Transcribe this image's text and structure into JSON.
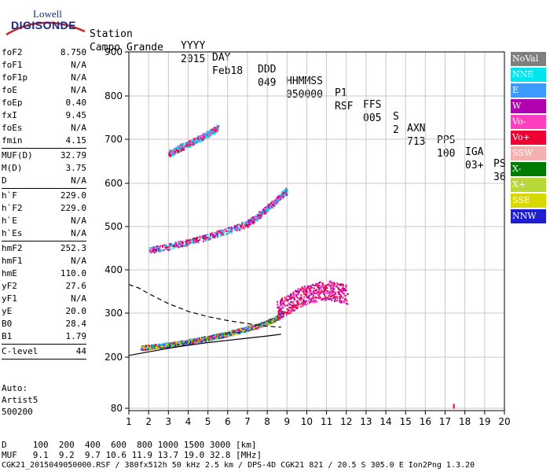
{
  "logo": {
    "line1": "Lowell",
    "line2": "DIGISONDE"
  },
  "header": {
    "labels": [
      "Station",
      "YYYY",
      "DAY",
      "DDD",
      "HHMMSS",
      "P1",
      "FFS",
      "S",
      "AXN",
      "PPS",
      "IGA",
      "PS"
    ],
    "values": [
      "Campo Grande",
      "2015",
      "Feb18",
      "049",
      "050000",
      "RSF",
      "005",
      "2",
      "713",
      "100",
      "03+",
      "36"
    ]
  },
  "params": [
    {
      "group": [
        {
          "k": "foF2",
          "v": "8.750"
        },
        {
          "k": "foF1",
          "v": "N/A"
        },
        {
          "k": "foF1p",
          "v": "N/A"
        },
        {
          "k": "foE",
          "v": "N/A"
        },
        {
          "k": "foEp",
          "v": "0.40"
        },
        {
          "k": "fxI",
          "v": "9.45"
        },
        {
          "k": "foEs",
          "v": "N/A"
        },
        {
          "k": "fmin",
          "v": "4.15"
        }
      ]
    },
    {
      "group": [
        {
          "k": "MUF(D)",
          "v": "32.79"
        },
        {
          "k": "M(D)",
          "v": "3.75"
        },
        {
          "k": "D",
          "v": "N/A"
        }
      ]
    },
    {
      "group": [
        {
          "k": "h`F",
          "v": "229.0"
        },
        {
          "k": "h`F2",
          "v": "229.0"
        },
        {
          "k": "h`E",
          "v": "N/A"
        },
        {
          "k": "h`Es",
          "v": "N/A"
        }
      ]
    },
    {
      "group": [
        {
          "k": "hmF2",
          "v": "252.3"
        },
        {
          "k": "hmF1",
          "v": "N/A"
        },
        {
          "k": "hmE",
          "v": "110.0"
        },
        {
          "k": "yF2",
          "v": "27.6"
        },
        {
          "k": "yF1",
          "v": "N/A"
        },
        {
          "k": "yE",
          "v": "20.0"
        },
        {
          "k": "B0",
          "v": "28.4"
        },
        {
          "k": "B1",
          "v": "1.79"
        }
      ]
    },
    {
      "group": [
        {
          "k": "C-level",
          "v": "44"
        }
      ]
    }
  ],
  "auto": [
    "Auto:",
    "Artist5",
    "500200"
  ],
  "legend": [
    {
      "label": "NoVal",
      "bg": "#7f7f7f",
      "fg": "#ffffff"
    },
    {
      "label": "NNE",
      "bg": "#00e5ee",
      "fg": "#ffffff"
    },
    {
      "label": "E",
      "bg": "#3d9bff",
      "fg": "#ffffff"
    },
    {
      "label": "W",
      "bg": "#b000b0",
      "fg": "#ffffff"
    },
    {
      "label": "Vo-",
      "bg": "#ff3fc0",
      "fg": "#ffffff"
    },
    {
      "label": "Vo+",
      "bg": "#ee0033",
      "fg": "#ffffff"
    },
    {
      "label": "SSW",
      "bg": "#f6b0b0",
      "fg": "#ffffff"
    },
    {
      "label": "X-",
      "bg": "#007a00",
      "fg": "#ffffff"
    },
    {
      "label": "X+",
      "bg": "#b8d83a",
      "fg": "#ffffff"
    },
    {
      "label": "SSE",
      "bg": "#d8d800",
      "fg": "#ffffff"
    },
    {
      "label": "NNW",
      "bg": "#1f1fcf",
      "fg": "#ffffff"
    }
  ],
  "footer": {
    "line1": "D     100  200  400  600  800 1000 1500 3000 [km]",
    "line2": "MUF   9.1  9.2  9.7 10.6 11.9 13.7 19.0 32.8 [MHz]",
    "line3": "CGK21_2015049050000.RSF / 380fx512h 50 kHz 2.5 km / DPS-4D CGK21 821 / 20.5 S 305.0 E Ion2Png 1.3.20"
  },
  "chart_data": {
    "type": "scatter",
    "xlabel": "",
    "ylabel": "",
    "xlim": [
      1,
      20
    ],
    "ylim": [
      80,
      900
    ],
    "x_ticks": [
      1,
      2,
      3,
      4,
      5,
      6,
      7,
      8,
      9,
      10,
      11,
      12,
      13,
      14,
      15,
      16,
      17,
      18,
      19,
      20
    ],
    "y_ticks": [
      80,
      200,
      300,
      400,
      500,
      600,
      700,
      800,
      900
    ],
    "grid": true,
    "traces": [
      {
        "name": "F2 trace (O)",
        "color_mix": [
          "#00e5ee",
          "#3d9bff",
          "#ee0033",
          "#ff3fc0",
          "#007a00",
          "#b8d83a",
          "#d8d800",
          "#1f1fcf"
        ],
        "points": [
          [
            1.6,
            222
          ],
          [
            2,
            224
          ],
          [
            2.5,
            226
          ],
          [
            3,
            229
          ],
          [
            3.5,
            232
          ],
          [
            4,
            236
          ],
          [
            4.5,
            240
          ],
          [
            5,
            244
          ],
          [
            5.5,
            249
          ],
          [
            6,
            254
          ],
          [
            6.5,
            260
          ],
          [
            7,
            266
          ],
          [
            7.5,
            272
          ],
          [
            8,
            280
          ],
          [
            8.5,
            290
          ],
          [
            8.75,
            300
          ]
        ]
      },
      {
        "name": "F2 upper echoes",
        "color_mix": [
          "#b000b0",
          "#ff3fc0",
          "#ee0033"
        ],
        "points": [
          [
            8.5,
            310
          ],
          [
            9,
            320
          ],
          [
            9.5,
            335
          ],
          [
            10,
            345
          ],
          [
            10.5,
            350
          ],
          [
            11,
            355
          ],
          [
            11.5,
            350
          ],
          [
            12,
            345
          ]
        ]
      },
      {
        "name": "2nd hop",
        "color_mix": [
          "#ee0033",
          "#ff3fc0",
          "#3d9bff",
          "#00e5ee",
          "#b000b0"
        ],
        "points": [
          [
            2,
            446
          ],
          [
            3,
            455
          ],
          [
            4,
            466
          ],
          [
            5,
            478
          ],
          [
            6,
            492
          ],
          [
            7,
            508
          ],
          [
            7.5,
            525
          ],
          [
            8,
            545
          ],
          [
            8.5,
            565
          ],
          [
            9,
            585
          ]
        ]
      },
      {
        "name": "3rd hop",
        "color_mix": [
          "#ee0033",
          "#ff3fc0",
          "#3d9bff",
          "#00e5ee"
        ],
        "points": [
          [
            3,
            668
          ],
          [
            3.5,
            680
          ],
          [
            4,
            690
          ],
          [
            4.5,
            702
          ],
          [
            5,
            714
          ],
          [
            5.5,
            728
          ]
        ]
      }
    ],
    "profile_curves": [
      {
        "name": "profile-dashed",
        "points": [
          [
            1,
            366
          ],
          [
            1.5,
            358
          ],
          [
            2,
            345
          ],
          [
            3,
            322
          ],
          [
            4,
            304
          ],
          [
            5,
            292
          ],
          [
            6,
            283
          ],
          [
            7,
            276
          ],
          [
            8,
            270
          ],
          [
            8.7,
            268
          ]
        ]
      },
      {
        "name": "profile-solid",
        "points": [
          [
            1,
            204
          ],
          [
            2,
            212
          ],
          [
            3,
            220
          ],
          [
            4,
            227
          ],
          [
            5,
            233
          ],
          [
            6,
            238
          ],
          [
            7,
            243
          ],
          [
            8,
            248
          ],
          [
            8.7,
            252
          ]
        ]
      }
    ],
    "isolated_marks": [
      [
        17.4,
        83
      ]
    ]
  }
}
